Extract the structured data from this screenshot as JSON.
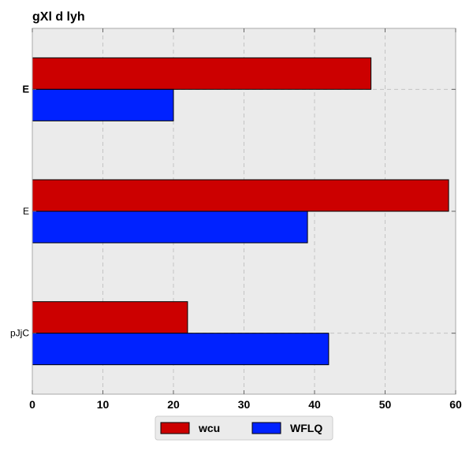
{
  "chart_data": {
    "type": "bar",
    "orientation": "horizontal",
    "title": "gXl d lyh",
    "xlabel": "",
    "ylabel": "",
    "xlim": [
      0,
      60
    ],
    "x_ticks": [
      0,
      10,
      20,
      30,
      40,
      50,
      60
    ],
    "categories": [
      "E",
      "E",
      "pJjC"
    ],
    "category_label_bold": [
      true,
      false,
      false
    ],
    "series": [
      {
        "name": "wcu",
        "color": "#cc0000",
        "values": [
          48,
          59,
          22
        ]
      },
      {
        "name": "WFLQ",
        "color": "#0022ff",
        "values": [
          20,
          39,
          42
        ]
      }
    ],
    "grid": true,
    "legend_position": "bottom-center",
    "background_color": "#ebebeb"
  }
}
